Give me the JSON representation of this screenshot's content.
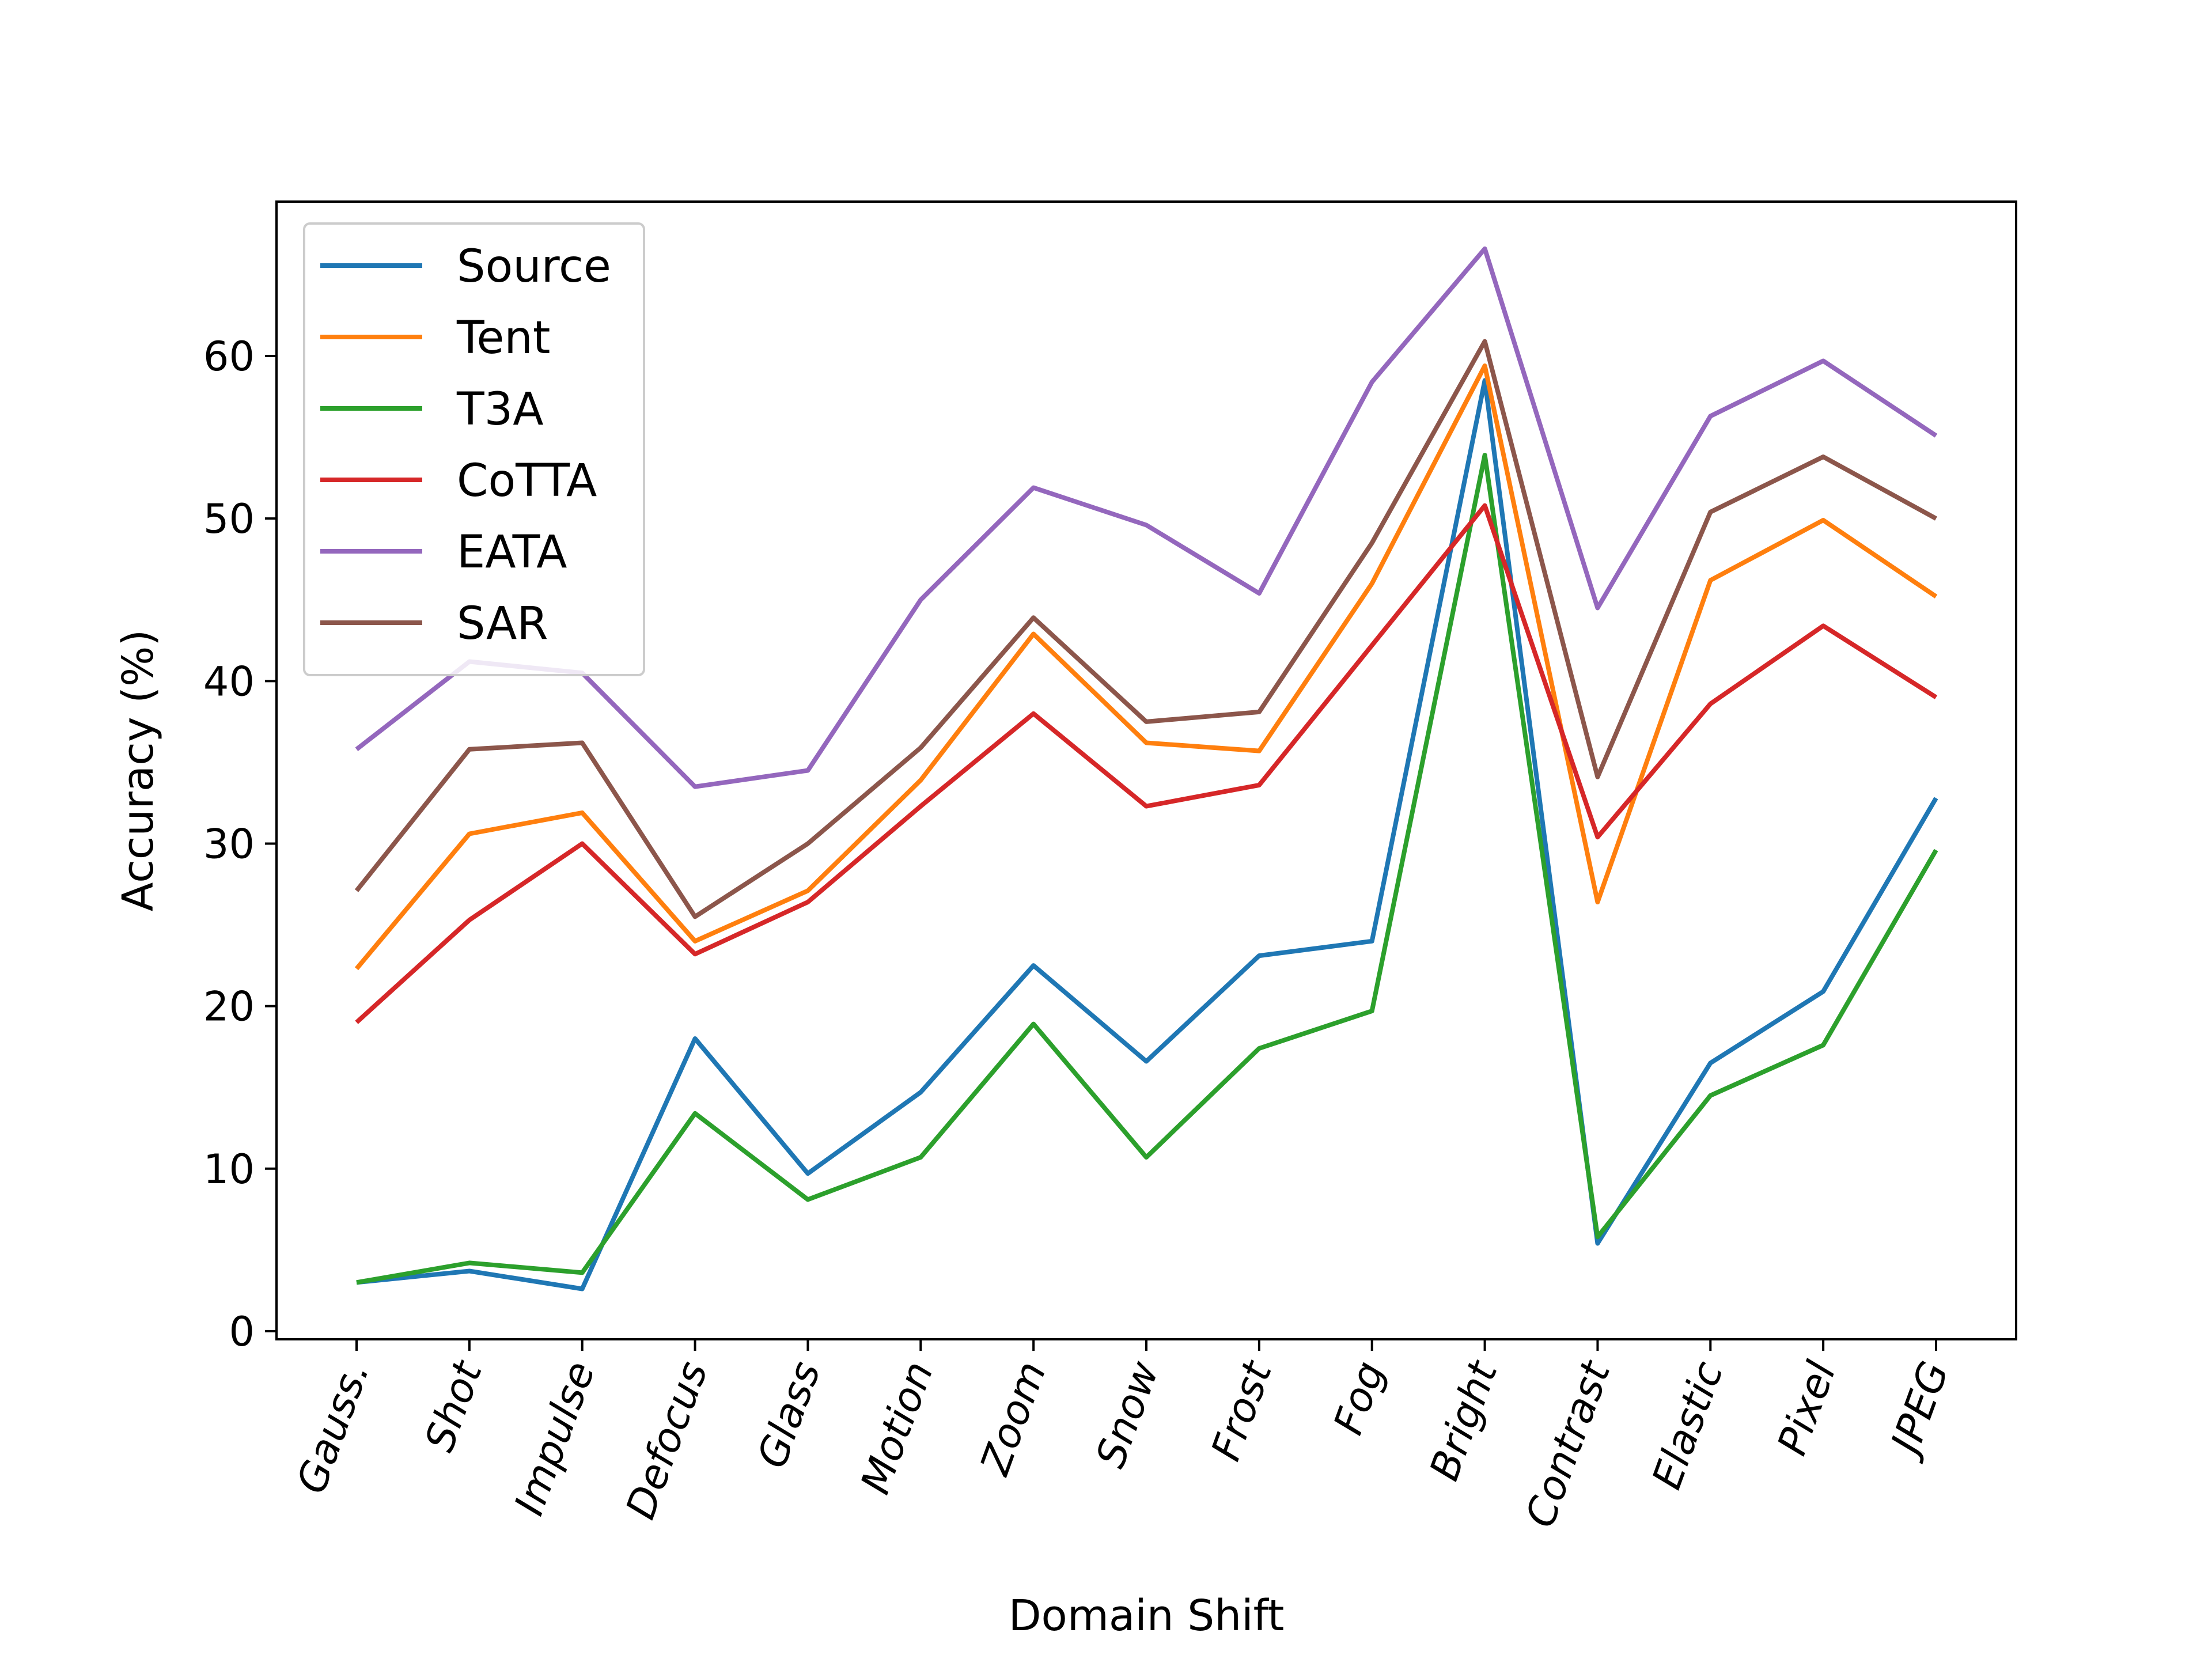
{
  "chart_data": {
    "type": "line",
    "title": "",
    "xlabel": "Domain Shift",
    "ylabel": "Accuracy (%)",
    "ylim": [
      -0.5,
      69.5
    ],
    "yticks": [
      0,
      10,
      20,
      30,
      40,
      50,
      60
    ],
    "grid": false,
    "legend_position": "upper-left",
    "categories": [
      "Gauss.",
      "Shot",
      "Impulse",
      "Defocus",
      "Glass",
      "Motion",
      "Zoom",
      "Snow",
      "Frost",
      "Fog",
      "Bright",
      "Contrast",
      "Elastic",
      "Pixel",
      "JPEG"
    ],
    "series": [
      {
        "name": "Source",
        "color": "#1f77b4",
        "values": [
          3.0,
          3.7,
          2.6,
          18.0,
          9.7,
          14.7,
          22.5,
          16.6,
          23.1,
          24.0,
          58.5,
          5.4,
          16.5,
          20.9,
          32.8
        ]
      },
      {
        "name": "Tent",
        "color": "#ff7f0e",
        "values": [
          22.3,
          30.6,
          31.9,
          24.0,
          27.1,
          33.9,
          42.9,
          36.2,
          35.7,
          46.0,
          59.4,
          26.4,
          46.2,
          49.9,
          45.2
        ]
      },
      {
        "name": "T3A",
        "color": "#2ca02c",
        "values": [
          3.0,
          4.2,
          3.6,
          13.4,
          8.1,
          10.7,
          18.9,
          10.7,
          17.4,
          19.7,
          53.9,
          5.8,
          14.5,
          17.6,
          29.6
        ]
      },
      {
        "name": "CoTTA",
        "color": "#d62728",
        "values": [
          19.0,
          25.3,
          30.0,
          23.2,
          26.4,
          32.3,
          38.0,
          32.3,
          33.6,
          42.2,
          50.8,
          30.4,
          38.6,
          43.4,
          39.0
        ]
      },
      {
        "name": "EATA",
        "color": "#9467bd",
        "values": [
          35.8,
          41.2,
          40.5,
          33.5,
          34.5,
          45.0,
          51.9,
          49.6,
          45.4,
          58.4,
          66.6,
          44.5,
          56.3,
          59.7,
          55.1
        ]
      },
      {
        "name": "SAR",
        "color": "#8c564b",
        "values": [
          27.1,
          35.8,
          36.2,
          25.5,
          30.0,
          35.9,
          43.9,
          37.5,
          38.1,
          48.5,
          60.9,
          34.1,
          50.4,
          53.8,
          50.0
        ]
      }
    ]
  }
}
